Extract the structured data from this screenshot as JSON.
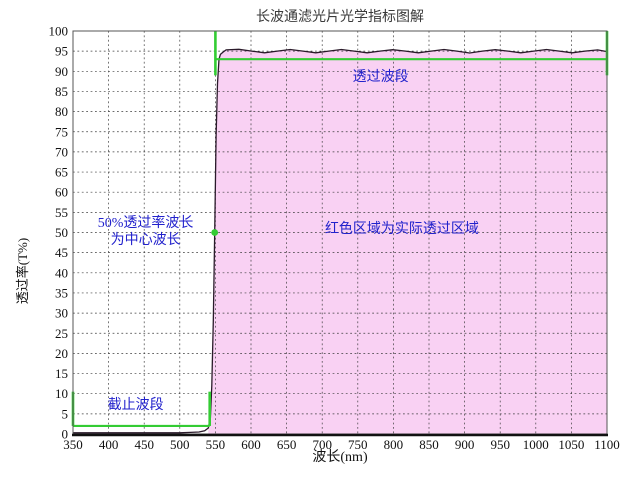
{
  "chart_data": {
    "type": "area",
    "title": "长波通滤光片光学指标图解",
    "xlabel": "波长(nm)",
    "ylabel": "透过率(T%)",
    "xlim": [
      350,
      1100
    ],
    "ylim": [
      0,
      100
    ],
    "x_ticks": [
      350,
      400,
      450,
      500,
      550,
      600,
      650,
      700,
      750,
      800,
      850,
      900,
      950,
      1000,
      1050,
      1100
    ],
    "y_ticks": [
      0,
      5,
      10,
      15,
      20,
      25,
      30,
      35,
      40,
      45,
      50,
      55,
      60,
      65,
      70,
      75,
      80,
      85,
      90,
      95,
      100
    ],
    "grid": true,
    "legend": "none",
    "colors": {
      "fill": "#f9d1f3",
      "curve": "#2a1a2a",
      "guide": "#33cc33",
      "grid": "#3c3c3c",
      "axis": "#111111",
      "border": "#555555",
      "annotation_text": "#2222cc",
      "title_text": "#3a3a3a",
      "tick_text": "#111111"
    },
    "series": [
      {
        "x": [
          350,
          380,
          410,
          440,
          470,
          500,
          515,
          527,
          535,
          540,
          543,
          545,
          547,
          549,
          551,
          553,
          555,
          557,
          561,
          565,
          583,
          601,
          619,
          637,
          655,
          673,
          691,
          709,
          727,
          745,
          763,
          781,
          799,
          817,
          835,
          853,
          871,
          889,
          907,
          925,
          943,
          961,
          979,
          997,
          1015,
          1033,
          1051,
          1069,
          1087,
          1100
        ],
        "y": [
          0.3,
          0.3,
          0.3,
          0.3,
          0.3,
          0.3,
          0.4,
          0.5,
          0.8,
          1.5,
          4,
          12,
          28,
          50,
          74,
          87,
          93,
          94.2,
          94.8,
          95.3,
          95.45,
          95.0,
          94.6,
          95.0,
          95.4,
          95.0,
          94.6,
          95.0,
          95.4,
          95.0,
          94.6,
          95.0,
          95.35,
          95.0,
          94.6,
          95.0,
          95.4,
          95.0,
          94.55,
          95.0,
          95.35,
          95.0,
          94.6,
          95.0,
          95.4,
          95.0,
          94.6,
          95.0,
          95.3,
          94.9
        ],
        "fill_under_from_x": 540
      }
    ],
    "markers": [
      {
        "name": "center-wavelength-point",
        "x": 549,
        "y": 50,
        "color": "#33cc33"
      }
    ],
    "guides": {
      "pass_band_bracket": {
        "h_line": {
          "y": 93,
          "x1": 550,
          "x2": 1100
        },
        "v_lines": [
          {
            "x": 550,
            "y1": 89,
            "y2": 100
          },
          {
            "x": 1100,
            "y1": 89,
            "y2": 100
          }
        ]
      },
      "cutoff_bracket": {
        "h_line": {
          "y": 2,
          "x1": 350,
          "x2": 542
        },
        "v_lines": [
          {
            "x": 350,
            "y1": 2,
            "y2": 10.5
          },
          {
            "x": 542,
            "y1": 2,
            "y2": 10.5
          }
        ]
      }
    },
    "annotations": [
      {
        "name": "pass-band-label",
        "text": "透过波段",
        "x": 782,
        "y": 88.3,
        "color": "#2222cc"
      },
      {
        "name": "actual-region-label",
        "text": "红色区域为实际透过区域",
        "x": 812,
        "y": 50.5,
        "color": "#2222cc"
      },
      {
        "name": "center-wavelength-label",
        "lines": [
          "50%透过率波长",
          "为中心波长"
        ],
        "x": 452,
        "y": 50,
        "color": "#2222cc"
      },
      {
        "name": "cutoff-band-label",
        "text": "截止波段",
        "x": 438,
        "y": 7,
        "color": "#2222cc"
      }
    ]
  }
}
